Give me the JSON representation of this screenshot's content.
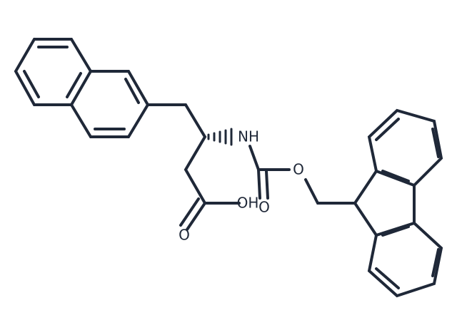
{
  "atoms": {
    "amine": "NH",
    "ester_oxygen": "O",
    "carbamate_carbonyl": "O",
    "hydroxyl": "OH",
    "acid_carbonyl": "O"
  }
}
